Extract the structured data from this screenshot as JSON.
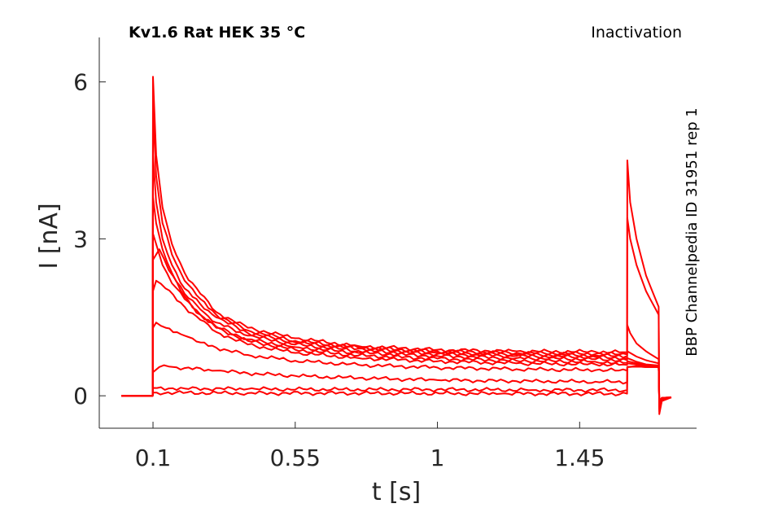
{
  "chart_data": {
    "type": "line",
    "title": "Kv1.6  Rat  HEK  35 °C",
    "protocol": "Inactivation",
    "side_label": "BBP Channelpedia ID 31951 rep 1",
    "xlabel": "t [s]",
    "ylabel": "I [nA]",
    "xlim": [
      -0.07,
      1.82
    ],
    "ylim": [
      -0.62,
      6.85
    ],
    "xticks": [
      0.1,
      0.55,
      1,
      1.45
    ],
    "xtick_labels": [
      "0.1",
      "0.55",
      "1",
      "1.45"
    ],
    "yticks": [
      0,
      3,
      6
    ],
    "ytick_labels": [
      "0",
      "3",
      "6"
    ],
    "grid": false,
    "line_color": "#ff0000",
    "series": [
      {
        "values": [
          [
            0,
            0
          ],
          [
            0.099,
            0
          ],
          [
            0.1,
            6.1
          ],
          [
            0.11,
            4.6
          ],
          [
            0.13,
            3.6
          ],
          [
            0.16,
            2.9
          ],
          [
            0.2,
            2.35
          ],
          [
            0.25,
            1.95
          ],
          [
            0.3,
            1.6
          ],
          [
            0.4,
            1.3
          ],
          [
            0.55,
            1.1
          ],
          [
            0.75,
            0.95
          ],
          [
            1.0,
            0.88
          ],
          [
            1.25,
            0.85
          ],
          [
            1.5,
            0.84
          ],
          [
            1.6,
            0.83
          ],
          [
            1.601,
            4.5
          ],
          [
            1.61,
            3.7
          ],
          [
            1.63,
            3.0
          ],
          [
            1.66,
            2.3
          ],
          [
            1.7,
            1.7
          ],
          [
            1.702,
            -0.35
          ],
          [
            1.71,
            -0.1
          ],
          [
            1.74,
            -0.03
          ]
        ]
      },
      {
        "values": [
          [
            0,
            0
          ],
          [
            0.099,
            0
          ],
          [
            0.1,
            5.5
          ],
          [
            0.11,
            4.2
          ],
          [
            0.13,
            3.3
          ],
          [
            0.16,
            2.7
          ],
          [
            0.2,
            2.2
          ],
          [
            0.25,
            1.85
          ],
          [
            0.3,
            1.55
          ],
          [
            0.4,
            1.25
          ],
          [
            0.55,
            1.05
          ],
          [
            0.75,
            0.92
          ],
          [
            1.0,
            0.85
          ],
          [
            1.25,
            0.82
          ],
          [
            1.5,
            0.8
          ],
          [
            1.6,
            0.79
          ],
          [
            1.601,
            3.4
          ],
          [
            1.61,
            3.0
          ],
          [
            1.63,
            2.5
          ],
          [
            1.66,
            2.0
          ],
          [
            1.7,
            1.55
          ],
          [
            1.702,
            -0.3
          ],
          [
            1.71,
            -0.1
          ],
          [
            1.74,
            -0.03
          ]
        ]
      },
      {
        "values": [
          [
            0,
            0
          ],
          [
            0.099,
            0
          ],
          [
            0.1,
            4.6
          ],
          [
            0.11,
            3.7
          ],
          [
            0.13,
            3.0
          ],
          [
            0.16,
            2.5
          ],
          [
            0.2,
            2.05
          ],
          [
            0.25,
            1.75
          ],
          [
            0.3,
            1.5
          ],
          [
            0.4,
            1.2
          ],
          [
            0.55,
            1.02
          ],
          [
            0.75,
            0.9
          ],
          [
            1.0,
            0.82
          ],
          [
            1.25,
            0.79
          ],
          [
            1.5,
            0.77
          ],
          [
            1.6,
            0.76
          ],
          [
            1.601,
            1.35
          ],
          [
            1.61,
            1.2
          ],
          [
            1.63,
            1.0
          ],
          [
            1.66,
            0.85
          ],
          [
            1.7,
            0.7
          ],
          [
            1.702,
            -0.25
          ],
          [
            1.71,
            -0.08
          ],
          [
            1.74,
            -0.03
          ]
        ]
      },
      {
        "values": [
          [
            0,
            0
          ],
          [
            0.099,
            0
          ],
          [
            0.1,
            3.8
          ],
          [
            0.11,
            3.3
          ],
          [
            0.13,
            2.8
          ],
          [
            0.16,
            2.35
          ],
          [
            0.2,
            1.95
          ],
          [
            0.25,
            1.65
          ],
          [
            0.3,
            1.4
          ],
          [
            0.4,
            1.15
          ],
          [
            0.55,
            0.98
          ],
          [
            0.75,
            0.86
          ],
          [
            1.0,
            0.8
          ],
          [
            1.25,
            0.76
          ],
          [
            1.5,
            0.74
          ],
          [
            1.6,
            0.72
          ],
          [
            1.601,
            0.85
          ],
          [
            1.63,
            0.75
          ],
          [
            1.66,
            0.68
          ],
          [
            1.7,
            0.62
          ],
          [
            1.702,
            -0.22
          ],
          [
            1.71,
            -0.07
          ],
          [
            1.74,
            -0.03
          ]
        ]
      },
      {
        "values": [
          [
            0,
            0
          ],
          [
            0.099,
            0
          ],
          [
            0.1,
            3.1
          ],
          [
            0.11,
            2.9
          ],
          [
            0.13,
            2.5
          ],
          [
            0.16,
            2.15
          ],
          [
            0.2,
            1.85
          ],
          [
            0.25,
            1.55
          ],
          [
            0.3,
            1.32
          ],
          [
            0.4,
            1.08
          ],
          [
            0.55,
            0.93
          ],
          [
            0.75,
            0.82
          ],
          [
            1.0,
            0.76
          ],
          [
            1.25,
            0.72
          ],
          [
            1.5,
            0.7
          ],
          [
            1.6,
            0.68
          ],
          [
            1.601,
            0.72
          ],
          [
            1.63,
            0.65
          ],
          [
            1.66,
            0.6
          ],
          [
            1.7,
            0.58
          ],
          [
            1.702,
            -0.2
          ],
          [
            1.71,
            -0.07
          ],
          [
            1.74,
            -0.03
          ]
        ]
      },
      {
        "values": [
          [
            0,
            0
          ],
          [
            0.099,
            0
          ],
          [
            0.1,
            2.6
          ],
          [
            0.12,
            2.8
          ],
          [
            0.15,
            2.4
          ],
          [
            0.2,
            1.9
          ],
          [
            0.25,
            1.55
          ],
          [
            0.3,
            1.3
          ],
          [
            0.4,
            1.05
          ],
          [
            0.55,
            0.88
          ],
          [
            0.75,
            0.77
          ],
          [
            1.0,
            0.71
          ],
          [
            1.25,
            0.67
          ],
          [
            1.5,
            0.65
          ],
          [
            1.6,
            0.63
          ],
          [
            1.601,
            0.66
          ],
          [
            1.63,
            0.62
          ],
          [
            1.66,
            0.58
          ],
          [
            1.7,
            0.56
          ],
          [
            1.702,
            -0.18
          ],
          [
            1.71,
            -0.06
          ],
          [
            1.74,
            -0.03
          ]
        ]
      },
      {
        "values": [
          [
            0,
            0
          ],
          [
            0.099,
            0
          ],
          [
            0.1,
            2.0
          ],
          [
            0.11,
            2.2
          ],
          [
            0.14,
            2.05
          ],
          [
            0.2,
            1.7
          ],
          [
            0.25,
            1.45
          ],
          [
            0.3,
            1.22
          ],
          [
            0.4,
            0.98
          ],
          [
            0.55,
            0.82
          ],
          [
            0.75,
            0.72
          ],
          [
            1.0,
            0.66
          ],
          [
            1.25,
            0.62
          ],
          [
            1.5,
            0.6
          ],
          [
            1.6,
            0.59
          ],
          [
            1.601,
            0.62
          ],
          [
            1.63,
            0.6
          ],
          [
            1.66,
            0.57
          ],
          [
            1.7,
            0.55
          ],
          [
            1.702,
            -0.16
          ],
          [
            1.71,
            -0.05
          ],
          [
            1.74,
            -0.03
          ]
        ]
      },
      {
        "values": [
          [
            0,
            0
          ],
          [
            0.099,
            0
          ],
          [
            0.1,
            1.3
          ],
          [
            0.11,
            1.4
          ],
          [
            0.14,
            1.3
          ],
          [
            0.2,
            1.15
          ],
          [
            0.25,
            1.02
          ],
          [
            0.3,
            0.92
          ],
          [
            0.4,
            0.78
          ],
          [
            0.55,
            0.67
          ],
          [
            0.75,
            0.59
          ],
          [
            1.0,
            0.54
          ],
          [
            1.25,
            0.51
          ],
          [
            1.5,
            0.49
          ],
          [
            1.6,
            0.48
          ],
          [
            1.601,
            0.55
          ],
          [
            1.63,
            0.56
          ],
          [
            1.66,
            0.55
          ],
          [
            1.7,
            0.55
          ],
          [
            1.702,
            -0.14
          ],
          [
            1.71,
            -0.05
          ],
          [
            1.74,
            -0.03
          ]
        ]
      },
      {
        "values": [
          [
            0,
            0
          ],
          [
            0.099,
            0
          ],
          [
            0.1,
            0.45
          ],
          [
            0.12,
            0.55
          ],
          [
            0.15,
            0.56
          ],
          [
            0.2,
            0.53
          ],
          [
            0.3,
            0.48
          ],
          [
            0.4,
            0.43
          ],
          [
            0.55,
            0.38
          ],
          [
            0.75,
            0.34
          ],
          [
            1.0,
            0.3
          ],
          [
            1.25,
            0.28
          ],
          [
            1.5,
            0.27
          ],
          [
            1.6,
            0.26
          ],
          [
            1.601,
            0.55
          ],
          [
            1.63,
            0.56
          ],
          [
            1.66,
            0.55
          ],
          [
            1.7,
            0.55
          ],
          [
            1.702,
            -0.12
          ],
          [
            1.71,
            -0.04
          ],
          [
            1.74,
            -0.03
          ]
        ]
      },
      {
        "values": [
          [
            0,
            0
          ],
          [
            0.099,
            0
          ],
          [
            0.1,
            0.15
          ],
          [
            0.2,
            0.14
          ],
          [
            0.4,
            0.13
          ],
          [
            0.7,
            0.12
          ],
          [
            1.0,
            0.12
          ],
          [
            1.3,
            0.11
          ],
          [
            1.6,
            0.11
          ],
          [
            1.601,
            0.55
          ],
          [
            1.63,
            0.57
          ],
          [
            1.66,
            0.55
          ],
          [
            1.7,
            0.55
          ],
          [
            1.702,
            -0.1
          ],
          [
            1.71,
            -0.04
          ],
          [
            1.74,
            -0.03
          ]
        ]
      },
      {
        "values": [
          [
            0,
            0
          ],
          [
            0.099,
            0
          ],
          [
            0.1,
            0.06
          ],
          [
            0.4,
            0.05
          ],
          [
            0.8,
            0.05
          ],
          [
            1.2,
            0.04
          ],
          [
            1.6,
            0.04
          ],
          [
            1.601,
            0.55
          ],
          [
            1.63,
            0.56
          ],
          [
            1.66,
            0.55
          ],
          [
            1.7,
            0.55
          ],
          [
            1.702,
            -0.1
          ],
          [
            1.71,
            -0.04
          ],
          [
            1.74,
            -0.03
          ]
        ]
      }
    ]
  }
}
